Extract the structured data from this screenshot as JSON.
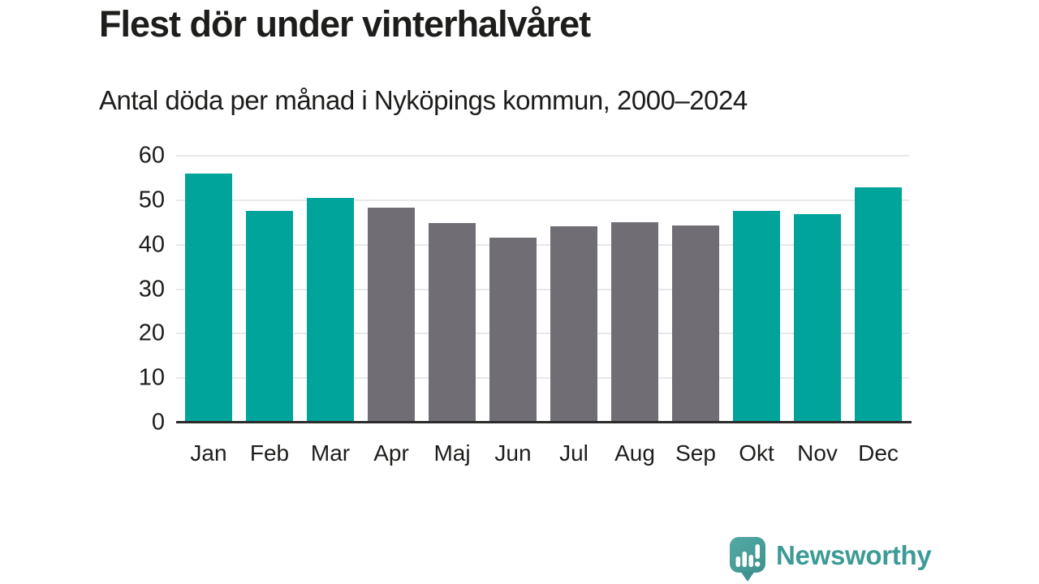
{
  "header": {
    "title": "Flest dör under vinterhalvåret",
    "subtitle": "Antal döda per månad i Nyköpings kommun, 2000–2024"
  },
  "chart_data": {
    "type": "bar",
    "title": "Flest dör under vinterhalvåret",
    "subtitle": "Antal döda per månad i Nyköpings kommun, 2000–2024",
    "categories": [
      "Jan",
      "Feb",
      "Mar",
      "Apr",
      "Maj",
      "Jun",
      "Jul",
      "Aug",
      "Sep",
      "Okt",
      "Nov",
      "Dec"
    ],
    "values": [
      56.0,
      47.6,
      50.5,
      48.4,
      44.8,
      41.5,
      44.2,
      45.0,
      44.3,
      47.6,
      46.9,
      52.8
    ],
    "bar_colors": [
      "#00a49b",
      "#00a49b",
      "#00a49b",
      "#706d74",
      "#706d74",
      "#706d74",
      "#706d74",
      "#706d74",
      "#706d74",
      "#00a49b",
      "#00a49b",
      "#00a49b"
    ],
    "xlabel": "",
    "ylabel": "",
    "ylim": [
      0,
      60
    ],
    "yticks": [
      0,
      10,
      20,
      30,
      40,
      50,
      60
    ],
    "grid": true,
    "legend": "none"
  },
  "branding": {
    "name": "Newsworthy",
    "logo_icon": "newsworthy-logo-icon",
    "brand_color": "#3d9b97"
  },
  "colors": {
    "winter_bar": "#00a49b",
    "summer_bar": "#706d74",
    "gridline": "#e8e8e8",
    "axis_line": "#2b2b2b",
    "text": "#1d1d1b",
    "logo_bubble": "#4aa29d"
  }
}
